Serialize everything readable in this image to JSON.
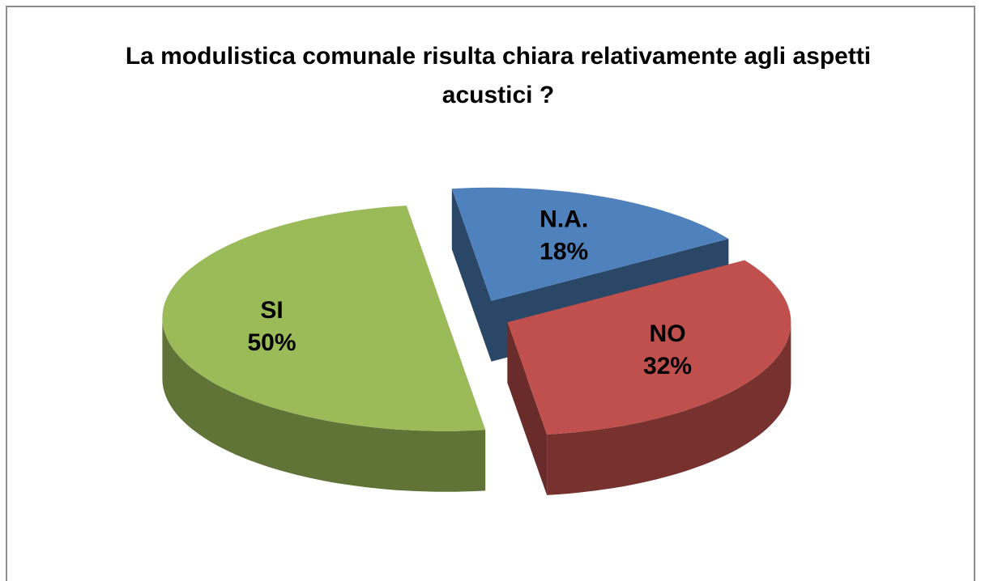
{
  "chart_data": {
    "type": "pie3d",
    "title": "La modulistica comunale risulta chiara relativamente agli aspetti acustici ?",
    "categories": [
      "N.A.",
      "NO",
      "SI"
    ],
    "values": [
      18,
      32,
      50
    ],
    "value_labels": [
      "18%",
      "32%",
      "50%"
    ],
    "colors": [
      "#4f81bd",
      "#c0504d",
      "#9bbb59"
    ]
  }
}
